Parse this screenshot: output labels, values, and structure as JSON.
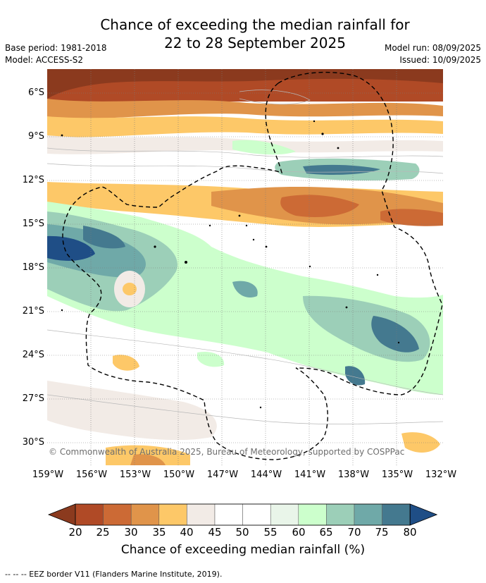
{
  "title": {
    "line1": "Chance of exceeding the median rainfall for",
    "line2": "22 to 28 September 2025"
  },
  "meta": {
    "base_period": "Base period: 1981-2018",
    "model": "Model: ACCESS-S2",
    "model_run": "Model run: 08/09/2025",
    "issued": "Issued: 10/09/2025"
  },
  "map": {
    "lat_labels": [
      "6°S",
      "9°S",
      "12°S",
      "15°S",
      "18°S",
      "21°S",
      "24°S",
      "27°S",
      "30°S"
    ],
    "lon_labels": [
      "159°W",
      "156°W",
      "153°W",
      "150°W",
      "147°W",
      "144°W",
      "141°W",
      "138°W",
      "135°W",
      "132°W"
    ],
    "copyright": "© Commonwealth of Australia 2025, Bureau of Meteorology, supported by COSPPac"
  },
  "colorbar": {
    "ticks": [
      "20",
      "25",
      "30",
      "35",
      "40",
      "45",
      "50",
      "55",
      "60",
      "65",
      "70",
      "75",
      "80"
    ],
    "colors": [
      "#8b3a1e",
      "#b04a26",
      "#cc6a35",
      "#e0944a",
      "#fdc868",
      "#f2ebe6",
      "#ffffff",
      "#ffffff",
      "#e9f5e9",
      "#ccffcc",
      "#9ccfb8",
      "#6fa9a8",
      "#44798f",
      "#1f4e86"
    ],
    "label": "Chance of exceeding median rainfall (%)"
  },
  "footnote": "--  --  -- EEZ border V11 (Flanders Marine Institute, 2019)."
}
